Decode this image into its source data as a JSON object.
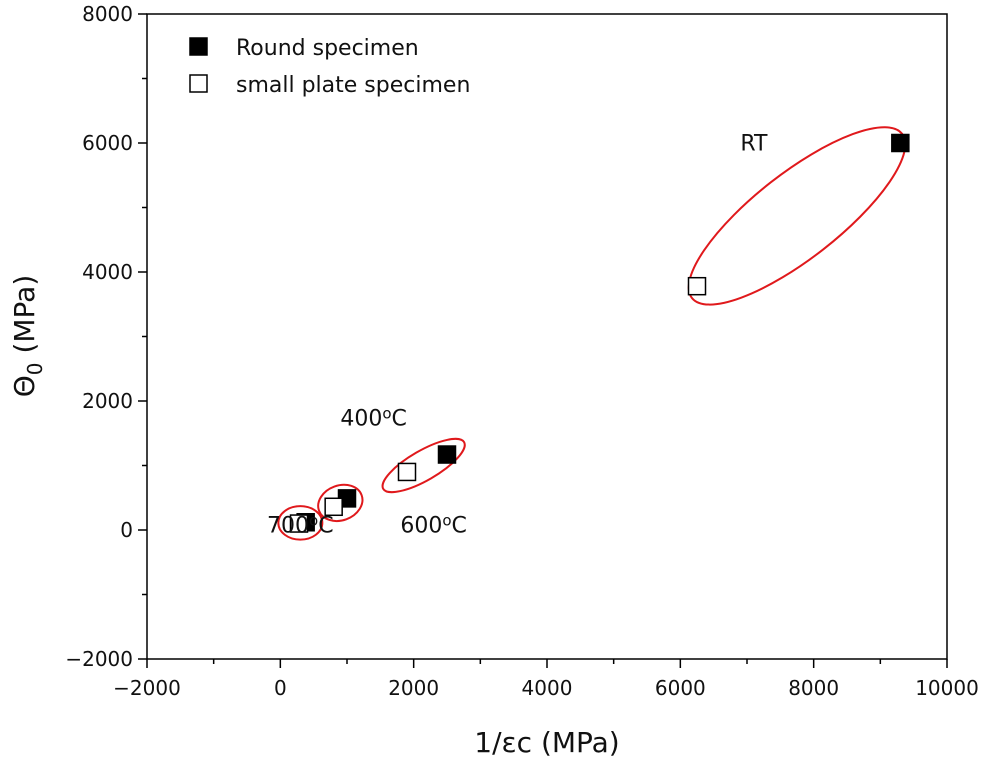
{
  "chart_data": {
    "type": "scatter",
    "title": "",
    "xlabel": "1/εc (MPa)",
    "ylabel_main": "Θ",
    "ylabel_sub": "0",
    "ylabel_tail": " (MPa)",
    "xlim": [
      -2000,
      10000
    ],
    "ylim": [
      -2000,
      8000
    ],
    "x_ticks": [
      -2000,
      0,
      2000,
      4000,
      6000,
      8000,
      10000
    ],
    "x_tick_labels": [
      "−2000",
      "0",
      "2000",
      "4000",
      "6000",
      "8000",
      "10000"
    ],
    "y_ticks": [
      -2000,
      0,
      2000,
      4000,
      6000,
      8000
    ],
    "y_tick_labels": [
      "−2000",
      "0",
      "2000",
      "4000",
      "6000",
      "8000"
    ],
    "legend_position": "top-left",
    "series": [
      {
        "name": "Round specimen",
        "marker": "filled-square",
        "color": "#000000",
        "points": [
          {
            "x": 9300,
            "y": 6000
          },
          {
            "x": 2500,
            "y": 1170
          },
          {
            "x": 1000,
            "y": 490
          },
          {
            "x": 380,
            "y": 120
          }
        ]
      },
      {
        "name": "small plate specimen",
        "marker": "open-square",
        "color": "#000000",
        "points": [
          {
            "x": 6250,
            "y": 3780
          },
          {
            "x": 1900,
            "y": 900
          },
          {
            "x": 800,
            "y": 360
          },
          {
            "x": 280,
            "y": 100
          }
        ]
      }
    ],
    "groups": [
      {
        "label": "RT",
        "label_x": 6900,
        "label_y": 5880,
        "cx": 7750,
        "cy": 4870,
        "rx": 2000,
        "ry": 660,
        "angle_deg": -38
      },
      {
        "label": "400",
        "label_sup": "o",
        "label_tail": "C",
        "label_x": 900,
        "label_y": 1620,
        "cx": 2150,
        "cy": 1000,
        "rx": 700,
        "ry": 230,
        "angle_deg": -30
      },
      {
        "label": "600",
        "label_sup": "o",
        "label_tail": "C",
        "label_x": 1800,
        "label_y": -40,
        "cx": 900,
        "cy": 420,
        "rx": 340,
        "ry": 270,
        "angle_deg": -20
      },
      {
        "label": "700",
        "label_sup": "o",
        "label_tail": "C",
        "label_x": -200,
        "label_y": -40,
        "cx": 300,
        "cy": 110,
        "rx": 330,
        "ry": 260,
        "angle_deg": 0
      }
    ],
    "ellipse_color": "#e0191c"
  }
}
